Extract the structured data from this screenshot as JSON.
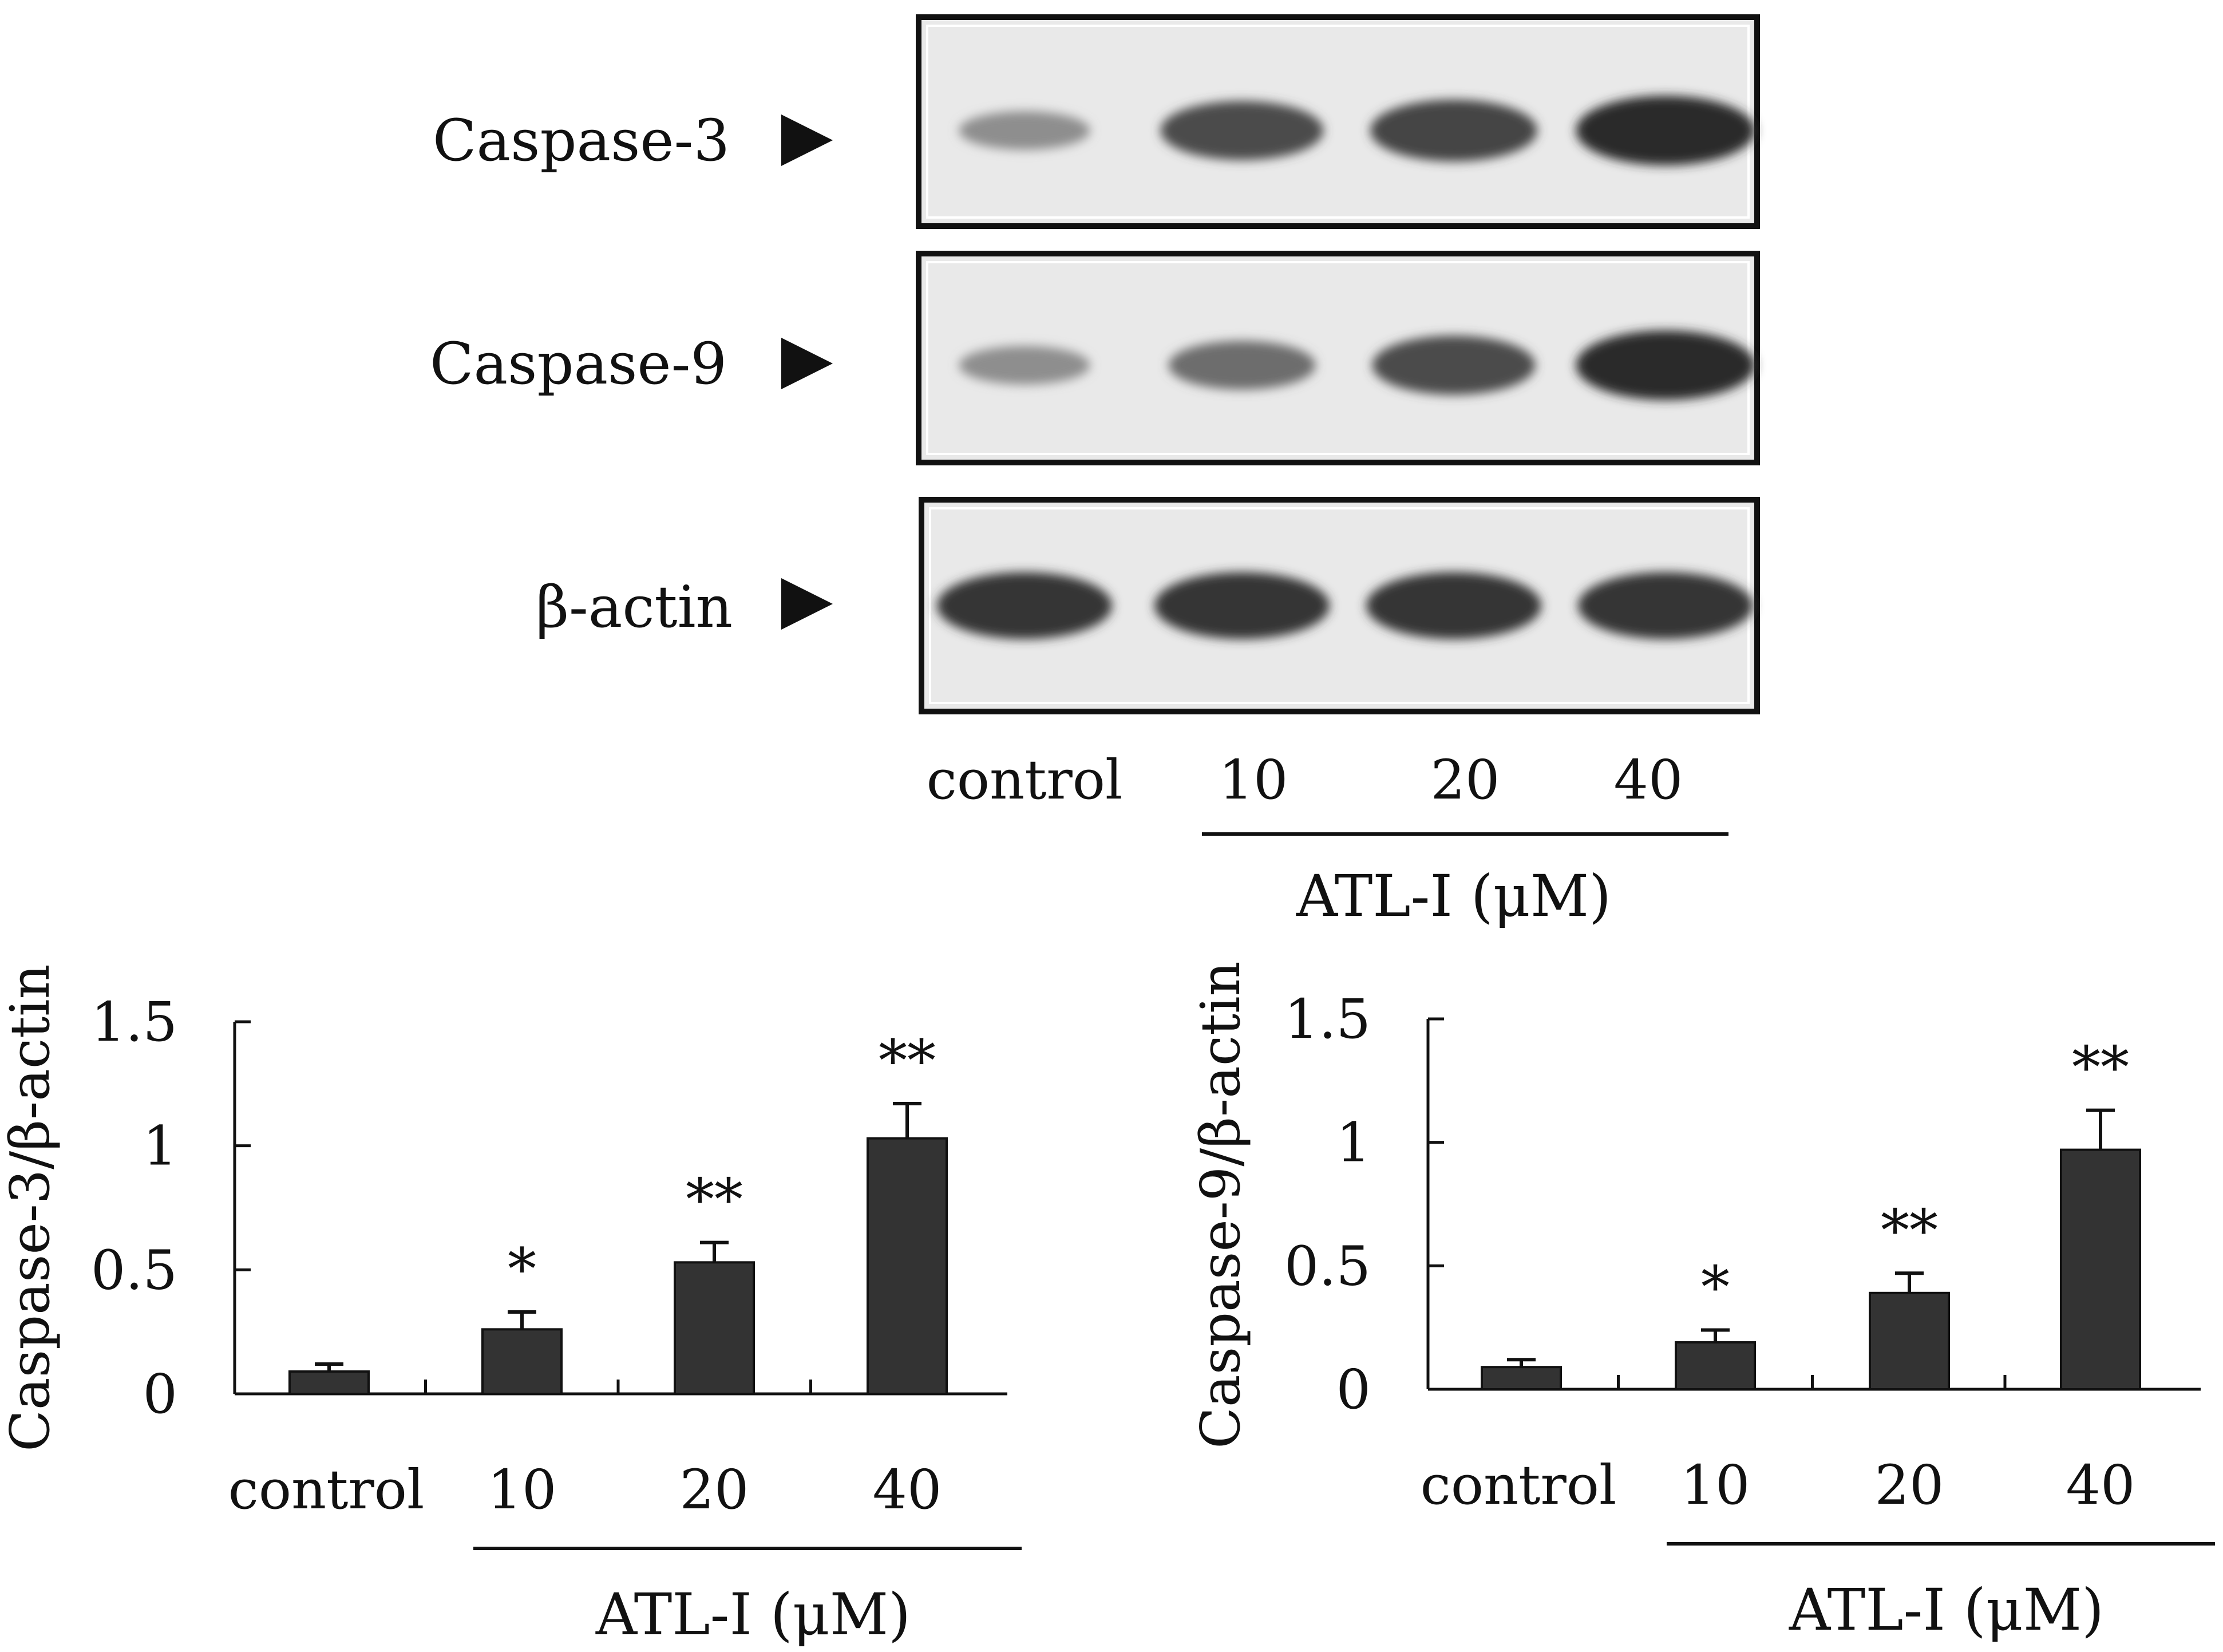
{
  "blot": {
    "rows": [
      {
        "label": "Caspase-3",
        "intensity": [
          0.35,
          0.75,
          0.8,
          0.95
        ]
      },
      {
        "label": "Caspase-9",
        "intensity": [
          0.35,
          0.55,
          0.75,
          0.95
        ]
      },
      {
        "label": "β-actin",
        "intensity": [
          0.9,
          0.9,
          0.9,
          0.9
        ]
      }
    ],
    "lanes": [
      "control",
      "10",
      "20",
      "40"
    ],
    "treatment_label": "ATL-I (μM)"
  },
  "chart_data": [
    {
      "type": "bar",
      "categories": [
        "control",
        "10",
        "20",
        "40"
      ],
      "values": [
        0.09,
        0.26,
        0.53,
        1.03
      ],
      "errors": [
        0.03,
        0.07,
        0.08,
        0.14
      ],
      "significance": [
        "",
        "*",
        "**",
        "**"
      ],
      "ylabel": "Caspase-3/β-actin",
      "xlabel": "ATL-I (μM)",
      "ylim": [
        0,
        1.5
      ],
      "yticks": [
        "0",
        "0.5",
        "1",
        "1.5"
      ],
      "bar_color": "#333333"
    },
    {
      "type": "bar",
      "categories": [
        "control",
        "10",
        "20",
        "40"
      ],
      "values": [
        0.09,
        0.19,
        0.39,
        0.97
      ],
      "errors": [
        0.03,
        0.05,
        0.08,
        0.16
      ],
      "significance": [
        "",
        "*",
        "**",
        "**"
      ],
      "ylabel": "Caspase-9/β-actin",
      "xlabel": "ATL-I (μM)",
      "ylim": [
        0,
        1.5
      ],
      "yticks": [
        "0",
        "0.5",
        "1",
        "1.5"
      ],
      "bar_color": "#333333"
    }
  ]
}
